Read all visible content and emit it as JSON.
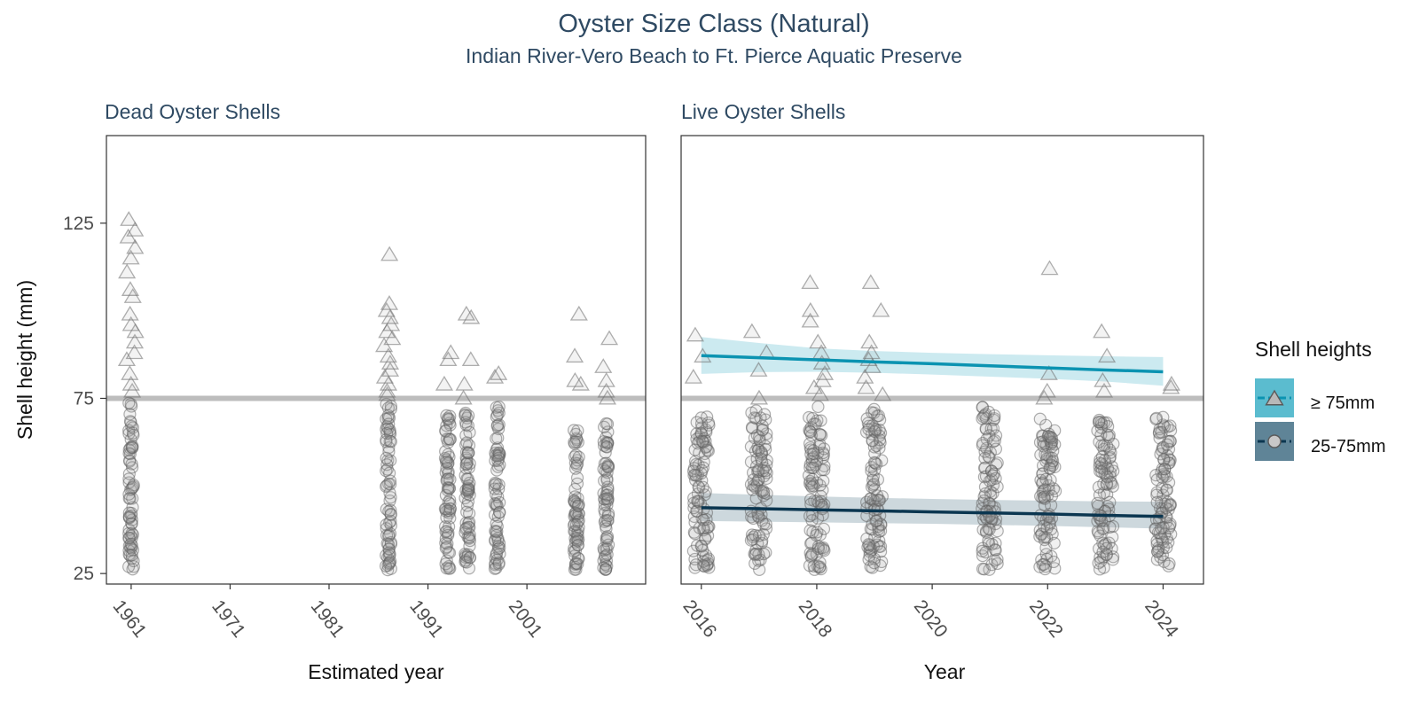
{
  "chart_data": {
    "type": "scatter",
    "title": "Oyster Size Class (Natural)",
    "subtitle": "Indian River-Vero Beach to Ft. Pierce Aquatic Preserve",
    "ylabel": "Shell height (mm)",
    "ylim": [
      22,
      150
    ],
    "yticks": [
      25,
      75,
      125
    ],
    "reference_line": 75,
    "grid": false,
    "legend": {
      "title": "Shell heights",
      "position": "right",
      "entries": [
        {
          "label": "≥ 75mm",
          "marker": "triangle",
          "fill": "#5bbccf",
          "line": "#0b93b1"
        },
        {
          "label": "25-75mm",
          "marker": "circle",
          "fill": "#5f8497",
          "line": "#0b3650"
        }
      ]
    },
    "panels": [
      {
        "title": "Dead Oyster Shells",
        "xlabel": "Estimated year",
        "xlim": [
          1958.5,
          2013
        ],
        "xticks": [
          1961,
          1971,
          1981,
          1991,
          2001
        ],
        "columns": [
          {
            "x": 1961,
            "circle_range": [
              26,
              74
            ],
            "triangles": [
              77,
              79,
              82,
              86,
              88,
              91,
              94,
              96,
              99,
              104,
              106,
              111,
              115,
              118,
              121,
              123,
              126
            ]
          },
          {
            "x": 1987,
            "circle_range": [
              26,
              74
            ],
            "triangles": [
              76,
              77,
              79,
              81,
              83,
              85,
              87,
              90,
              92,
              94,
              96,
              98,
              100,
              102,
              116
            ]
          },
          {
            "x": 1993,
            "circle_range": [
              26,
              71
            ],
            "triangles": [
              79,
              86,
              88
            ]
          },
          {
            "x": 1995,
            "circle_range": [
              26,
              71
            ],
            "triangles": [
              75,
              79,
              86,
              98,
              99
            ]
          },
          {
            "x": 1998,
            "circle_range": [
              26,
              74
            ],
            "triangles": [
              81,
              82
            ]
          },
          {
            "x": 2006,
            "circle_range": [
              26,
              66
            ],
            "triangles": [
              79,
              80,
              87,
              99
            ]
          },
          {
            "x": 2009,
            "circle_range": [
              26,
              68
            ],
            "triangles": [
              75,
              77,
              80,
              84,
              92
            ]
          }
        ]
      },
      {
        "title": "Live Oyster Shells",
        "xlabel": "Year",
        "xlim": [
          2015.65,
          2024.7
        ],
        "xticks": [
          2016,
          2018,
          2020,
          2022,
          2024
        ],
        "columns": [
          {
            "x": 2016,
            "circle_range": [
              26,
              70
            ],
            "triangles": [
              81,
              87,
              93
            ]
          },
          {
            "x": 2017,
            "circle_range": [
              26,
              72
            ],
            "triangles": [
              75,
              83,
              88,
              94
            ]
          },
          {
            "x": 2018,
            "circle_range": [
              26,
              73
            ],
            "triangles": [
              76,
              78,
              80,
              82,
              85,
              88,
              91,
              97,
              100,
              108
            ]
          },
          {
            "x": 2019,
            "circle_range": [
              26,
              72
            ],
            "triangles": [
              76,
              78,
              81,
              84,
              86,
              88,
              91,
              100,
              108
            ]
          },
          {
            "x": 2021,
            "circle_range": [
              26,
              73
            ],
            "triangles": []
          },
          {
            "x": 2022,
            "circle_range": [
              26,
              70
            ],
            "triangles": [
              75,
              77,
              82,
              112
            ]
          },
          {
            "x": 2023,
            "circle_range": [
              26,
              70
            ],
            "triangles": [
              77,
              80,
              87,
              94
            ]
          },
          {
            "x": 2024,
            "circle_range": [
              26,
              70
            ],
            "triangles": [
              78,
              79
            ]
          }
        ],
        "trend_large": {
          "x": [
            2016,
            2017,
            2018,
            2019,
            2020,
            2021,
            2022,
            2023,
            2024
          ],
          "y": [
            87.2,
            86.6,
            86.0,
            85.4,
            84.9,
            84.3,
            83.7,
            83.1,
            82.6
          ],
          "ci_low": [
            82.0,
            82.5,
            82.6,
            82.3,
            81.8,
            81.2,
            80.6,
            79.8,
            78.6
          ],
          "ci_high": [
            92.5,
            90.8,
            89.3,
            88.5,
            88.0,
            87.6,
            87.3,
            87.0,
            86.8
          ]
        },
        "trend_small": {
          "x": [
            2016,
            2017,
            2018,
            2019,
            2020,
            2021,
            2022,
            2023,
            2024
          ],
          "y": [
            43.8,
            43.5,
            43.2,
            42.9,
            42.6,
            42.3,
            42.0,
            41.6,
            41.3
          ],
          "ci_low": [
            40.0,
            39.8,
            39.6,
            39.4,
            39.2,
            38.9,
            38.6,
            38.2,
            37.8
          ],
          "ci_high": [
            48.0,
            47.5,
            47.0,
            46.6,
            46.3,
            46.0,
            45.8,
            45.6,
            45.5
          ]
        }
      }
    ]
  }
}
